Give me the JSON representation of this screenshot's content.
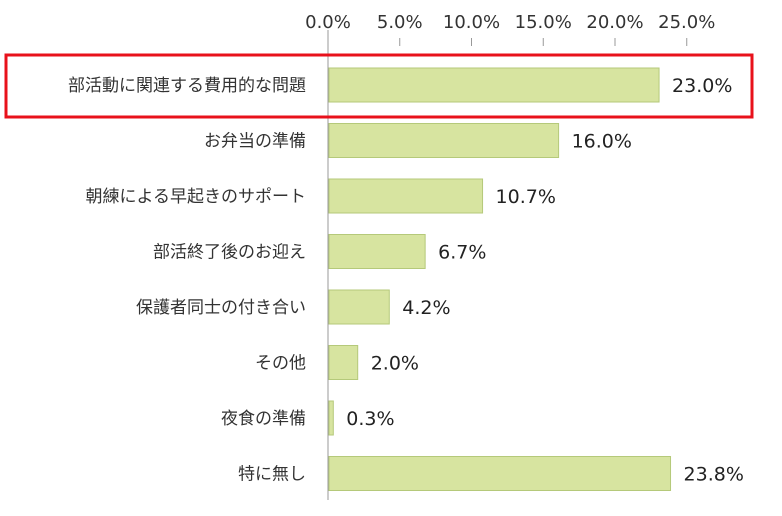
{
  "chart_data": {
    "type": "bar",
    "orientation": "horizontal",
    "title": "",
    "xlabel": "",
    "ylabel": "",
    "xlim": [
      0,
      25
    ],
    "axis_position": "top",
    "ticks": [
      "0.0%",
      "5.0%",
      "10.0%",
      "15.0%",
      "20.0%",
      "25.0%"
    ],
    "categories": [
      "部活動に関連する費用的な問題",
      "お弁当の準備",
      "朝練による早起きのサポート",
      "部活終了後のお迎え",
      "保護者同士の付き合い",
      "その他",
      "夜食の準備",
      "特に無し"
    ],
    "values": [
      23.0,
      16.0,
      10.7,
      6.7,
      4.2,
      2.0,
      0.3,
      23.8
    ],
    "value_labels": [
      "23.0%",
      "16.0%",
      "10.7%",
      "6.7%",
      "4.2%",
      "2.0%",
      "0.3%",
      "23.8%"
    ],
    "bar_color": "#d7e4a0",
    "bar_border_color": "#b5c97a",
    "highlighted_category_index": 0,
    "highlight_color": "#e8111b",
    "grid": false
  }
}
